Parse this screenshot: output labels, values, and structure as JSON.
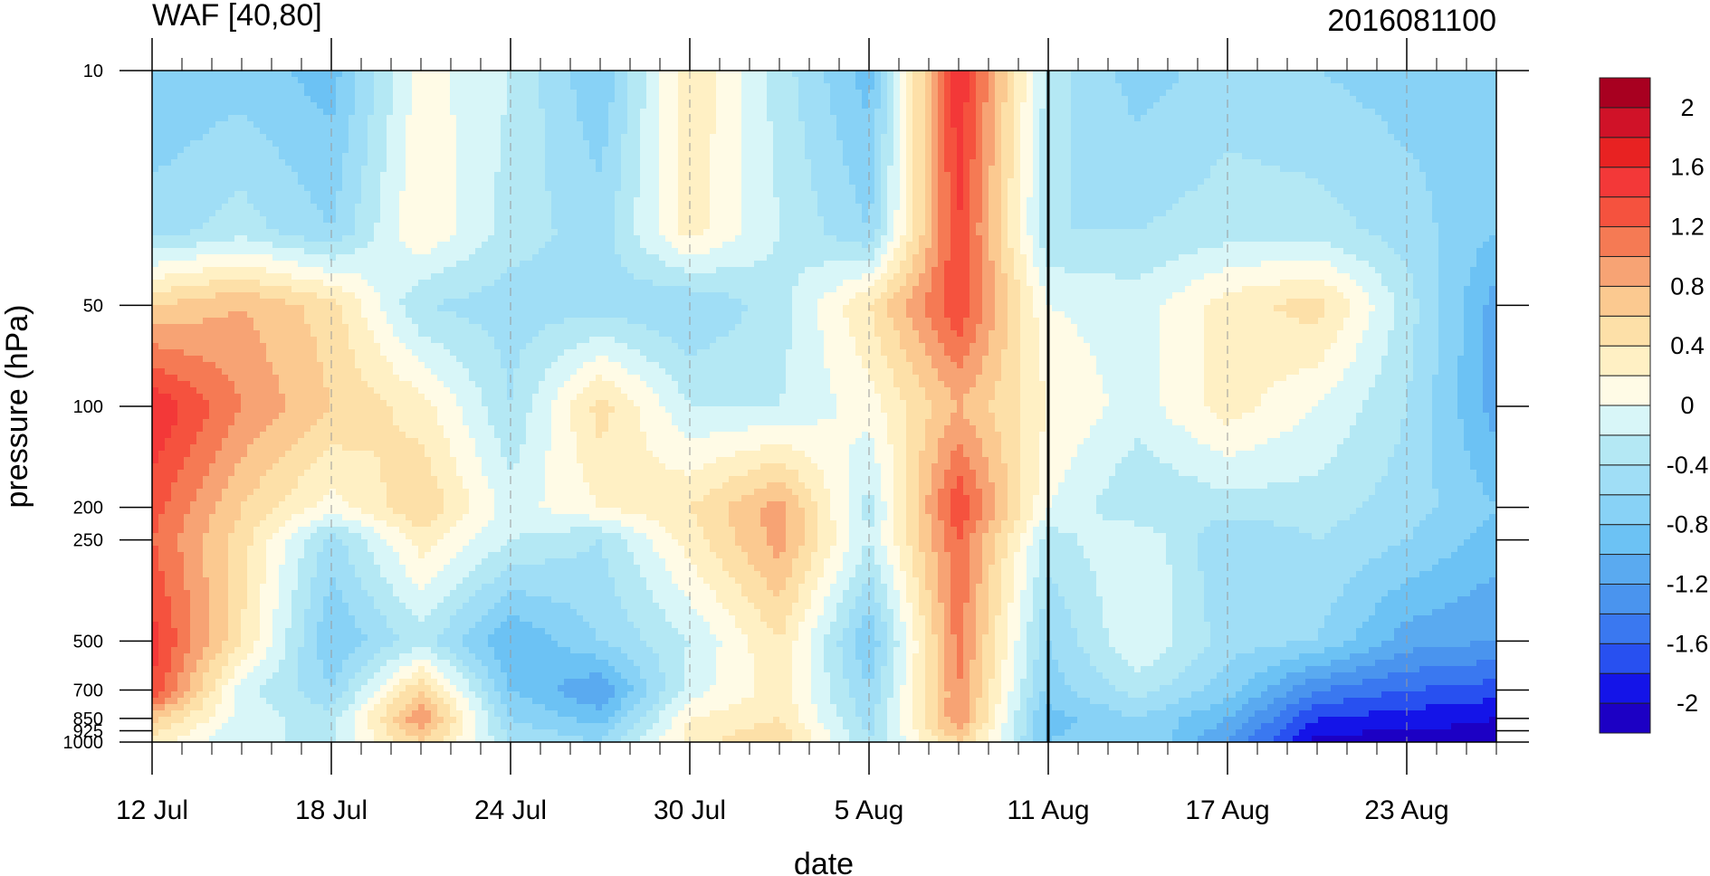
{
  "chart_data": {
    "type": "heatmap",
    "title_left": "WAF [40,80]",
    "title_right": "2016081100",
    "xlabel": "date",
    "ylabel": "pressure (hPa)",
    "x_tick_labels": [
      "12 Jul",
      "18 Jul",
      "24 Jul",
      "30 Jul",
      "5 Aug",
      "11 Aug",
      "17 Aug",
      "23 Aug"
    ],
    "x_major_tick_dates": [
      "2016-07-12",
      "2016-07-18",
      "2016-07-24",
      "2016-07-30",
      "2016-08-05",
      "2016-08-11",
      "2016-08-17",
      "2016-08-23"
    ],
    "x_range": [
      "2016-07-12",
      "2016-08-26"
    ],
    "vertical_marker_date": "2016-08-11",
    "y_scale": "log",
    "y_reversed": true,
    "y_range": [
      1000,
      10
    ],
    "y_ticks": [
      10,
      50,
      100,
      200,
      250,
      500,
      700,
      850,
      925,
      1000
    ],
    "y_tick_labels": [
      "10",
      "50",
      "100",
      "200",
      "250",
      "500",
      "700",
      "850",
      "925",
      "1000"
    ],
    "legend_position": "right",
    "colorbar": {
      "levels": [
        -2.2,
        -2.0,
        -1.8,
        -1.6,
        -1.4,
        -1.2,
        -1.0,
        -0.8,
        -0.6,
        -0.4,
        -0.2,
        0.0,
        0.2,
        0.4,
        0.6,
        0.8,
        1.0,
        1.2,
        1.4,
        1.6,
        1.8,
        2.0,
        2.2
      ],
      "label_values": [
        2,
        1.6,
        1.2,
        0.8,
        0.4,
        0,
        -0.4,
        -0.8,
        -1.2,
        -1.6,
        -2
      ],
      "labels": [
        "2",
        "1.6",
        "1.2",
        "0.8",
        "0.4",
        "0",
        "-0.4",
        "-0.8",
        "-1.2",
        "-1.6",
        "-2"
      ],
      "colors": [
        "#1c00c4",
        "#1414e8",
        "#2850f0",
        "#3a78f0",
        "#4a94ee",
        "#5aaaf0",
        "#6cc2f4",
        "#88d2f6",
        "#a0def6",
        "#b4e8f4",
        "#d8f6f8",
        "#fffbe6",
        "#fff0c4",
        "#fde0a8",
        "#fbc990",
        "#f7a374",
        "#f57a54",
        "#f5523e",
        "#f33838",
        "#e82222",
        "#d01228",
        "#a80020"
      ]
    },
    "field": {
      "dates": [
        "2016-07-12",
        "2016-07-15",
        "2016-07-18",
        "2016-07-21",
        "2016-07-24",
        "2016-07-27",
        "2016-07-30",
        "2016-08-02",
        "2016-08-05",
        "2016-08-08",
        "2016-08-11",
        "2016-08-14",
        "2016-08-17",
        "2016-08-20",
        "2016-08-23",
        "2016-08-26"
      ],
      "pressures": [
        10,
        30,
        50,
        100,
        200,
        250,
        500,
        700,
        850,
        1000
      ],
      "values": [
        [
          -0.8,
          -0.7,
          -0.9,
          0.1,
          -0.2,
          -0.8,
          0.4,
          -0.3,
          -0.9,
          1.6,
          -0.3,
          -0.7,
          -0.5,
          -0.6,
          -0.7,
          -0.6
        ],
        [
          -0.5,
          -0.3,
          -0.6,
          0.2,
          -0.3,
          -0.5,
          0.3,
          -0.2,
          -0.6,
          1.4,
          -0.4,
          -0.4,
          -0.3,
          -0.3,
          -0.5,
          -0.8
        ],
        [
          0.6,
          0.8,
          0.5,
          -0.4,
          -0.5,
          -0.5,
          -0.6,
          -0.3,
          0.4,
          1.4,
          0.0,
          -0.1,
          0.3,
          0.5,
          -0.3,
          -1.1
        ],
        [
          1.6,
          1.0,
          0.6,
          0.3,
          -0.4,
          0.5,
          -0.2,
          -0.2,
          0.1,
          0.8,
          0.2,
          -0.1,
          0.3,
          0.0,
          -0.4,
          -1.1
        ],
        [
          1.3,
          0.6,
          0.1,
          0.6,
          -0.1,
          0.2,
          0.4,
          0.9,
          -0.3,
          1.4,
          0.0,
          -0.4,
          -0.3,
          -0.3,
          -0.5,
          -0.8
        ],
        [
          1.2,
          0.5,
          -0.5,
          0.3,
          -0.2,
          -0.4,
          0.3,
          0.9,
          -0.2,
          1.2,
          -0.3,
          0.0,
          -0.6,
          -0.4,
          -0.6,
          -0.9
        ],
        [
          1.5,
          0.4,
          -0.8,
          -0.3,
          -1.0,
          -0.6,
          -0.2,
          0.4,
          -0.8,
          1.1,
          -0.6,
          0.0,
          -0.5,
          -0.6,
          -1.1,
          -1.2
        ],
        [
          1.4,
          -0.1,
          -0.6,
          0.6,
          -0.8,
          -1.2,
          -0.1,
          0.3,
          -0.6,
          1.0,
          -0.7,
          -0.3,
          -0.7,
          -1.4,
          -1.6,
          -1.7
        ],
        [
          0.7,
          -0.1,
          -0.3,
          1.0,
          -0.6,
          -0.9,
          0.2,
          0.4,
          -0.5,
          1.0,
          -0.9,
          -0.6,
          -1.0,
          -1.8,
          -1.9,
          -2.0
        ],
        [
          0.3,
          -0.2,
          -0.2,
          0.6,
          -0.4,
          -0.6,
          0.3,
          0.6,
          -0.4,
          0.6,
          -0.8,
          -0.6,
          -1.2,
          -2.1,
          -2.1,
          -2.1
        ]
      ]
    }
  }
}
